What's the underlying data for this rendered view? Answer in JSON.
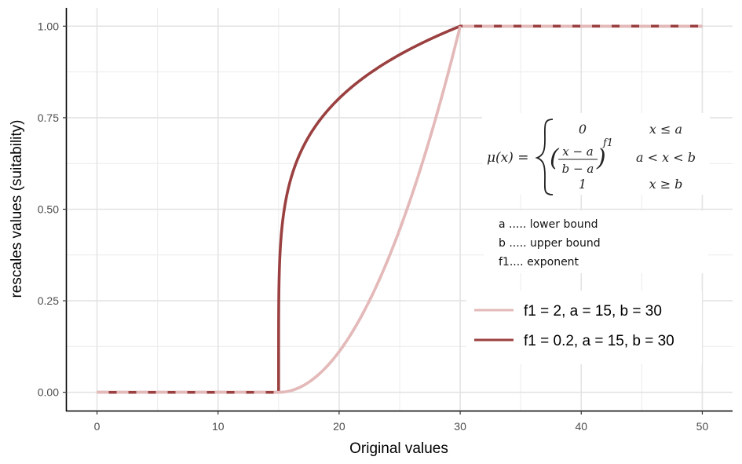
{
  "chart_data": {
    "type": "line",
    "xlabel": "Original values",
    "ylabel": "rescales values (suitability)",
    "xlim": [
      -2.5,
      52.5
    ],
    "ylim": [
      -0.05,
      1.05
    ],
    "x_ticks": [
      0,
      10,
      20,
      30,
      40,
      50
    ],
    "y_ticks": [
      0.0,
      0.25,
      0.5,
      0.75,
      1.0
    ],
    "x_tick_labels": [
      "0",
      "10",
      "20",
      "30",
      "40",
      "50"
    ],
    "y_tick_labels": [
      "0.00",
      "0.25",
      "0.50",
      "0.75",
      "1.00"
    ],
    "grid": true,
    "legend_position": "right",
    "series": [
      {
        "name": "f1 = 2, a = 15, b = 30",
        "color": "#e4b9b9",
        "f1": 2,
        "a": 15,
        "b": 30,
        "x_range": [
          0,
          50
        ]
      },
      {
        "name": "f1 = 0.2, a = 15, b = 30",
        "color": "#9b4040",
        "f1": 0.2,
        "a": 15,
        "b": 30,
        "x_range": [
          0,
          50
        ]
      }
    ],
    "annotation": {
      "formula": {
        "lhs": "μ(x) =",
        "case1_value": "0",
        "case1_cond": "x  ≤ a",
        "case2_num": "x − a",
        "case2_den": "b − a",
        "case2_exp": "f1",
        "case2_cond": "a  < x  < b",
        "case3_value": "1",
        "case3_cond": "x ≥ b"
      },
      "notes": [
        "a ..... lower bound",
        "b ..... upper bound",
        "f1.... exponent"
      ]
    }
  }
}
